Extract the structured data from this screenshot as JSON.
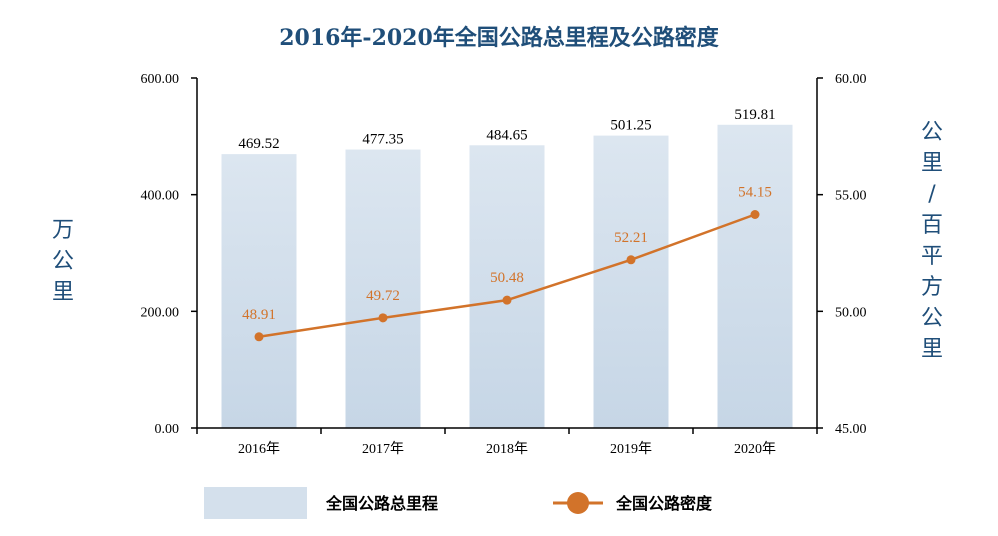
{
  "chart_data": {
    "type": "bar",
    "title": "2016年-2020年全国公路总里程及公路密度",
    "categories": [
      "2016年",
      "2017年",
      "2018年",
      "2019年",
      "2020年"
    ],
    "series": [
      {
        "name": "全国公路总里程",
        "type": "bar",
        "axis": "left",
        "values": [
          469.52,
          477.35,
          484.65,
          501.25,
          519.81
        ],
        "labels": [
          "469.52",
          "477.35",
          "484.65",
          "501.25",
          "519.81"
        ],
        "color": "#D4E0EC"
      },
      {
        "name": "全国公路密度",
        "type": "line",
        "axis": "right",
        "values": [
          48.91,
          49.72,
          50.48,
          52.21,
          54.15
        ],
        "labels": [
          "48.91",
          "49.72",
          "50.48",
          "52.21",
          "54.15"
        ],
        "color": "#D2732A"
      }
    ],
    "ylabel": "万公里",
    "y2label": "公里/百平方公里",
    "ylim": [
      0,
      600
    ],
    "y2lim": [
      45,
      60
    ],
    "yticks": [
      "0.00",
      "200.00",
      "400.00",
      "600.00"
    ],
    "y2ticks": [
      "45.00",
      "50.00",
      "55.00",
      "60.00"
    ],
    "grid": false,
    "legend_position": "bottom"
  },
  "colors": {
    "title": "#1F4E79",
    "axis_title": "#1F4E79",
    "bar": "#D4E0EC",
    "bar_top": "#DCE6F0",
    "bar_bottom": "#C6D6E6",
    "line": "#D2732A",
    "axis": "#000000"
  }
}
